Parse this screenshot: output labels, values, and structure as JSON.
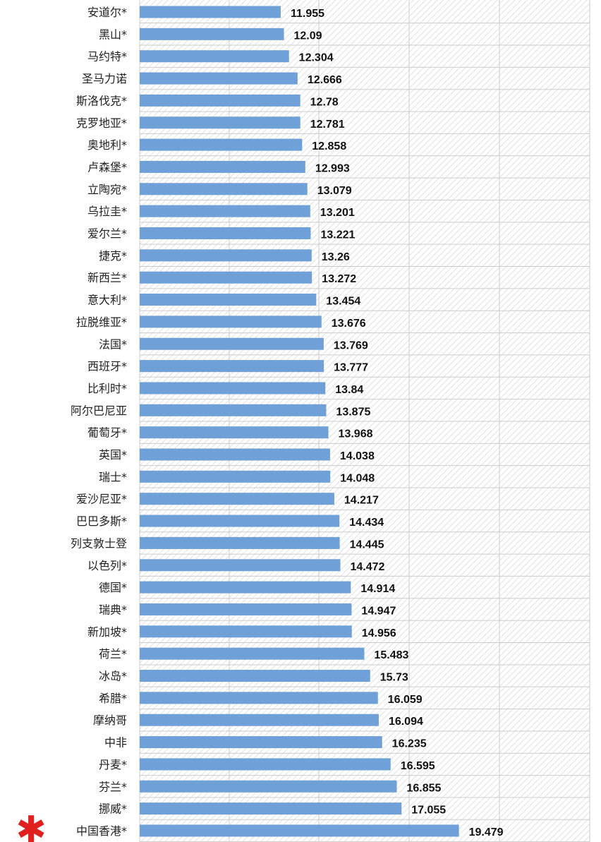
{
  "chart_data": {
    "type": "bar",
    "orientation": "horizontal",
    "categories": [
      "安道尔*",
      "黑山*",
      "马约特*",
      "圣马力诺",
      "斯洛伐克*",
      "克罗地亚*",
      "奥地利*",
      "卢森堡*",
      "立陶宛*",
      "乌拉圭*",
      "爱尔兰*",
      "捷克*",
      "新西兰*",
      "意大利*",
      "拉脱维亚*",
      "法国*",
      "西班牙*",
      "比利时*",
      "阿尔巴尼亚",
      "葡萄牙*",
      "英国*",
      "瑞士*",
      "爱沙尼亚*",
      "巴巴多斯*",
      "列支敦士登",
      "以色列*",
      "德国*",
      "瑞典*",
      "新加坡*",
      "荷兰*",
      "冰岛*",
      "希腊*",
      "摩纳哥",
      "中非",
      "丹麦*",
      "芬兰*",
      "挪威*",
      "中国香港*"
    ],
    "values": [
      11.955,
      12.09,
      12.304,
      12.666,
      12.78,
      12.781,
      12.858,
      12.993,
      13.079,
      13.201,
      13.221,
      13.26,
      13.272,
      13.454,
      13.676,
      13.769,
      13.777,
      13.84,
      13.875,
      13.968,
      14.038,
      14.048,
      14.217,
      14.434,
      14.445,
      14.472,
      14.914,
      14.947,
      14.956,
      15.483,
      15.73,
      16.059,
      16.094,
      16.235,
      16.595,
      16.855,
      17.055,
      19.479
    ],
    "value_labels": [
      "11.955",
      "12.09",
      "12.304",
      "12.666",
      "12.78",
      "12.781",
      "12.858",
      "12.993",
      "13.079",
      "13.201",
      "13.221",
      "13.26",
      "13.272",
      "13.454",
      "13.676",
      "13.769",
      "13.777",
      "13.84",
      "13.875",
      "13.968",
      "14.038",
      "14.048",
      "14.217",
      "14.434",
      "14.445",
      "14.472",
      "14.914",
      "14.947",
      "14.956",
      "15.483",
      "15.73",
      "16.059",
      "16.094",
      "16.235",
      "16.595",
      "16.855",
      "17.055",
      "19.479"
    ],
    "xlim": [
      6,
      25
    ],
    "grid": true,
    "bar_color": "#6fa0d8",
    "grid_color": "#cccccc",
    "highlight_marker": {
      "category": "中国香港*",
      "symbol": "✱",
      "color": "#e0201e"
    }
  }
}
